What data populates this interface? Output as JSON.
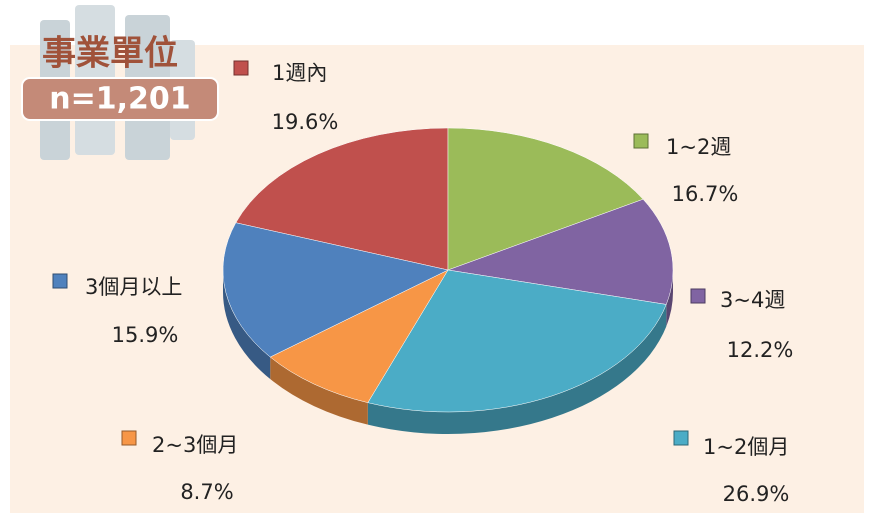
{
  "chart_data": {
    "type": "pie",
    "badge": {
      "title": "事業單位",
      "count": "n=1,201"
    },
    "categories": [
      "1週內",
      "1~2週",
      "3~4週",
      "1~2個月",
      "2~3個月",
      "3個月以上"
    ],
    "values": [
      19.6,
      16.7,
      12.2,
      26.9,
      8.7,
      15.9
    ],
    "value_labels": [
      "19.6%",
      "16.7%",
      "12.2%",
      "26.9%",
      "8.7%",
      "15.9%"
    ],
    "colors": [
      "#c0504d",
      "#9bbb59",
      "#8064a2",
      "#4bacc6",
      "#f79646",
      "#4f81bd"
    ]
  }
}
